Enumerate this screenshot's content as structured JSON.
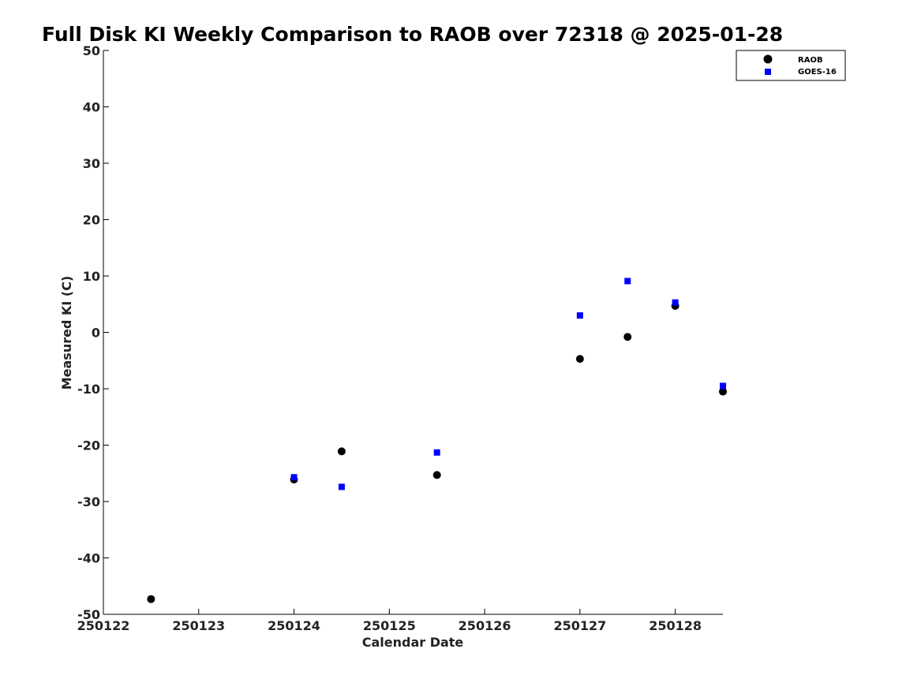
{
  "chart_data": {
    "type": "scatter",
    "title": "Full Disk KI Weekly Comparison to RAOB over 72318 @ 2025-01-28",
    "xlabel": "Calendar Date",
    "ylabel": "Measured KI (C)",
    "xlim": [
      250122,
      250128.5
    ],
    "ylim": [
      -50,
      50
    ],
    "x_ticks": [
      250122,
      250123,
      250124,
      250125,
      250126,
      250127,
      250128
    ],
    "y_ticks": [
      -50,
      -40,
      -30,
      -20,
      -10,
      0,
      10,
      20,
      30,
      40,
      50
    ],
    "legend_position": "top-right",
    "series": [
      {
        "name": "RAOB",
        "marker": "circle",
        "color": "#000000",
        "points": [
          {
            "x": 250122.5,
            "y": -47.3
          },
          {
            "x": 250124.0,
            "y": -26.1
          },
          {
            "x": 250124.5,
            "y": -21.1
          },
          {
            "x": 250125.5,
            "y": -25.3
          },
          {
            "x": 250127.0,
            "y": -4.7
          },
          {
            "x": 250127.5,
            "y": -0.8
          },
          {
            "x": 250128.0,
            "y": 4.7
          },
          {
            "x": 250128.5,
            "y": -10.5
          }
        ]
      },
      {
        "name": "GOES-16",
        "marker": "square",
        "color": "#0000ff",
        "points": [
          {
            "x": 250124.0,
            "y": -25.7
          },
          {
            "x": 250124.5,
            "y": -27.4
          },
          {
            "x": 250125.5,
            "y": -21.3
          },
          {
            "x": 250127.0,
            "y": 3.0
          },
          {
            "x": 250127.5,
            "y": 9.1
          },
          {
            "x": 250128.0,
            "y": 5.3
          },
          {
            "x": 250128.5,
            "y": -9.5
          }
        ]
      }
    ]
  }
}
